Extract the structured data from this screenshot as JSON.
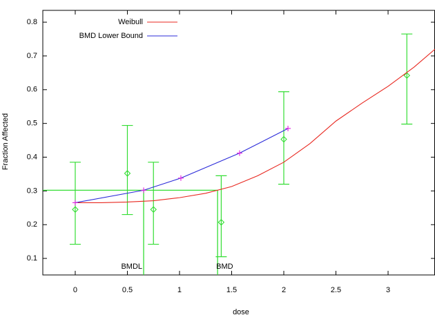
{
  "chart_data": {
    "type": "line",
    "x_label": "dose",
    "y_label": "Fraction Affected",
    "xlim": [
      -0.311,
      3.45
    ],
    "ylim": [
      0.051,
      0.835
    ],
    "xticks": [
      0,
      0.5,
      1,
      1.5,
      2,
      2.5,
      3
    ],
    "yticks": [
      0.1,
      0.2,
      0.3,
      0.4,
      0.5,
      0.6,
      0.7,
      0.8
    ],
    "series": [
      {
        "name": "Weibull",
        "color": "#e8271f",
        "x": [
          0,
          0.25,
          0.5,
          0.75,
          1,
          1.25,
          1.5,
          1.75,
          2,
          2.25,
          2.5,
          2.75,
          3,
          3.25,
          3.45
        ],
        "values": [
          0.265,
          0.265,
          0.267,
          0.271,
          0.28,
          0.293,
          0.313,
          0.345,
          0.385,
          0.44,
          0.507,
          0.56,
          0.61,
          0.667,
          0.72
        ]
      },
      {
        "name": "BMD Lower Bound",
        "color": "#2b2bd9",
        "marker_color": "#e020e0",
        "x": [
          0,
          0.656,
          1.013,
          1.576,
          2.04
        ],
        "values": [
          0.265,
          0.302,
          0.338,
          0.412,
          0.485
        ]
      }
    ],
    "observations": {
      "color": "#33dd33",
      "x": [
        0,
        0.5,
        0.75,
        1.4,
        2,
        3.18
      ],
      "values": [
        0.245,
        0.352,
        0.245,
        0.207,
        0.453,
        0.642
      ],
      "lower": [
        0.142,
        0.23,
        0.142,
        0.105,
        0.32,
        0.498
      ],
      "upper": [
        0.385,
        0.494,
        0.385,
        0.345,
        0.594,
        0.765
      ]
    },
    "benchmark": {
      "color": "#33dd33",
      "bmr": 0.302,
      "bmdl": 0.656,
      "bmd": 1.365,
      "bmdl_label": "BMDL",
      "bmd_label": "BMD"
    }
  }
}
